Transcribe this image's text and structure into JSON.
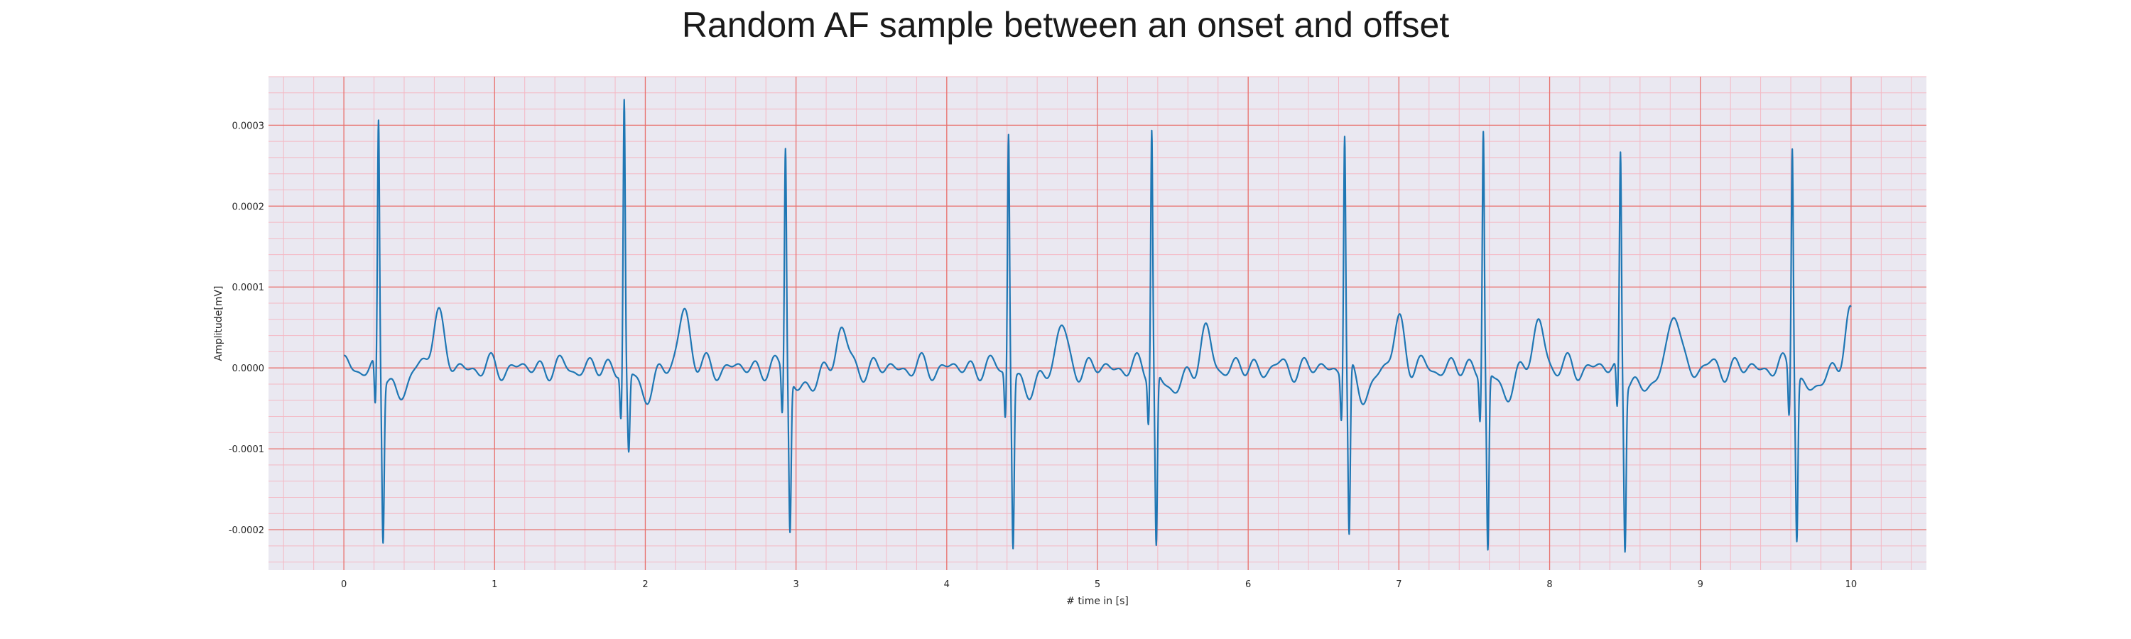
{
  "chart_data": {
    "type": "line",
    "title": "Random AF sample between an onset and offset",
    "xlabel": "# time in [s]",
    "ylabel": "Amplitude[mV]",
    "xlim": [
      -0.5,
      10.5
    ],
    "ylim": [
      -0.00025,
      0.00036
    ],
    "x_ticks": [
      0,
      1,
      2,
      3,
      4,
      5,
      6,
      7,
      8,
      9,
      10
    ],
    "y_ticks": [
      -0.0002,
      -0.0001,
      0.0,
      0.0001,
      0.0002,
      0.0003
    ],
    "y_tick_labels": [
      "-0.0002",
      "-0.0001",
      "0.0000",
      "0.0001",
      "0.0002",
      "0.0003"
    ],
    "grid": true,
    "major_grid_color": "#e8736f",
    "minor_grid_color": "#f4b8c4",
    "background_color": "#eae8f1",
    "line_color": "#1f77b4",
    "qrs_complexes": [
      {
        "t": 0.23,
        "r": 0.000305,
        "s": -0.0002
      },
      {
        "t": 1.86,
        "r": 0.000335,
        "s": -0.0001
      },
      {
        "t": 2.93,
        "r": 0.000278,
        "s": -0.00019
      },
      {
        "t": 4.41,
        "r": 0.0003,
        "s": -0.00021
      },
      {
        "t": 5.36,
        "r": 0.000303,
        "s": -0.000215
      },
      {
        "t": 6.64,
        "r": 0.000295,
        "s": -0.00021
      },
      {
        "t": 7.56,
        "r": 0.0003,
        "s": -0.00022
      },
      {
        "t": 8.47,
        "r": 0.00027,
        "s": -0.000205
      },
      {
        "t": 9.61,
        "r": 0.000288,
        "s": -0.000198
      }
    ],
    "t_waves": [
      {
        "t": 0.62,
        "amp": 7.5e-05
      },
      {
        "t": 2.26,
        "amp": 7.5e-05
      },
      {
        "t": 3.3,
        "amp": 4.8e-05
      },
      {
        "t": 4.76,
        "amp": 4.8e-05
      },
      {
        "t": 5.72,
        "amp": 4e-05
      },
      {
        "t": 7.0,
        "amp": 6e-05
      },
      {
        "t": 7.93,
        "amp": 5.7e-05
      },
      {
        "t": 8.83,
        "amp": 7e-05
      },
      {
        "t": 9.99,
        "amp": 6.3e-05
      }
    ],
    "x_end": 10.0
  }
}
